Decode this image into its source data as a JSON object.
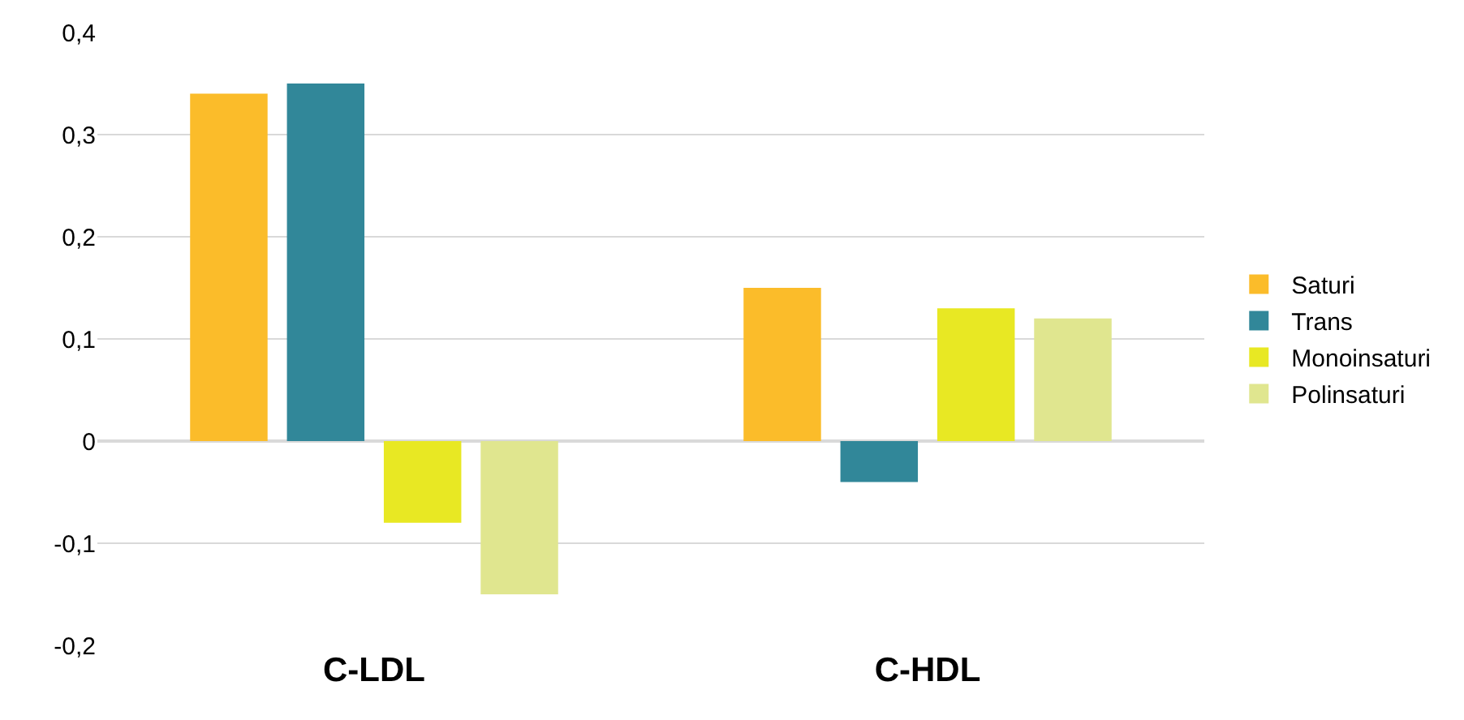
{
  "chart_data": {
    "type": "bar",
    "categories": [
      "C-LDL",
      "C-HDL"
    ],
    "series": [
      {
        "name": "Saturi",
        "color": "#fbbc2a",
        "values": [
          0.34,
          0.15
        ]
      },
      {
        "name": "Trans",
        "color": "#318799",
        "values": [
          0.35,
          -0.04
        ]
      },
      {
        "name": "Monoinsaturi",
        "color": "#e8e823",
        "values": [
          -0.08,
          0.13
        ]
      },
      {
        "name": "Polinsaturi",
        "color": "#e0e68f",
        "values": [
          -0.15,
          0.12
        ]
      }
    ],
    "ylim": [
      -0.2,
      0.4
    ],
    "yticks": [
      {
        "value": -0.2,
        "label": "-0,2"
      },
      {
        "value": -0.1,
        "label": "-0,1"
      },
      {
        "value": 0,
        "label": "0"
      },
      {
        "value": 0.1,
        "label": "0,1"
      },
      {
        "value": 0.2,
        "label": "0,2"
      },
      {
        "value": 0.3,
        "label": "0,3"
      },
      {
        "value": 0.4,
        "label": "0,4"
      }
    ],
    "grid": "y",
    "legend": "right"
  }
}
